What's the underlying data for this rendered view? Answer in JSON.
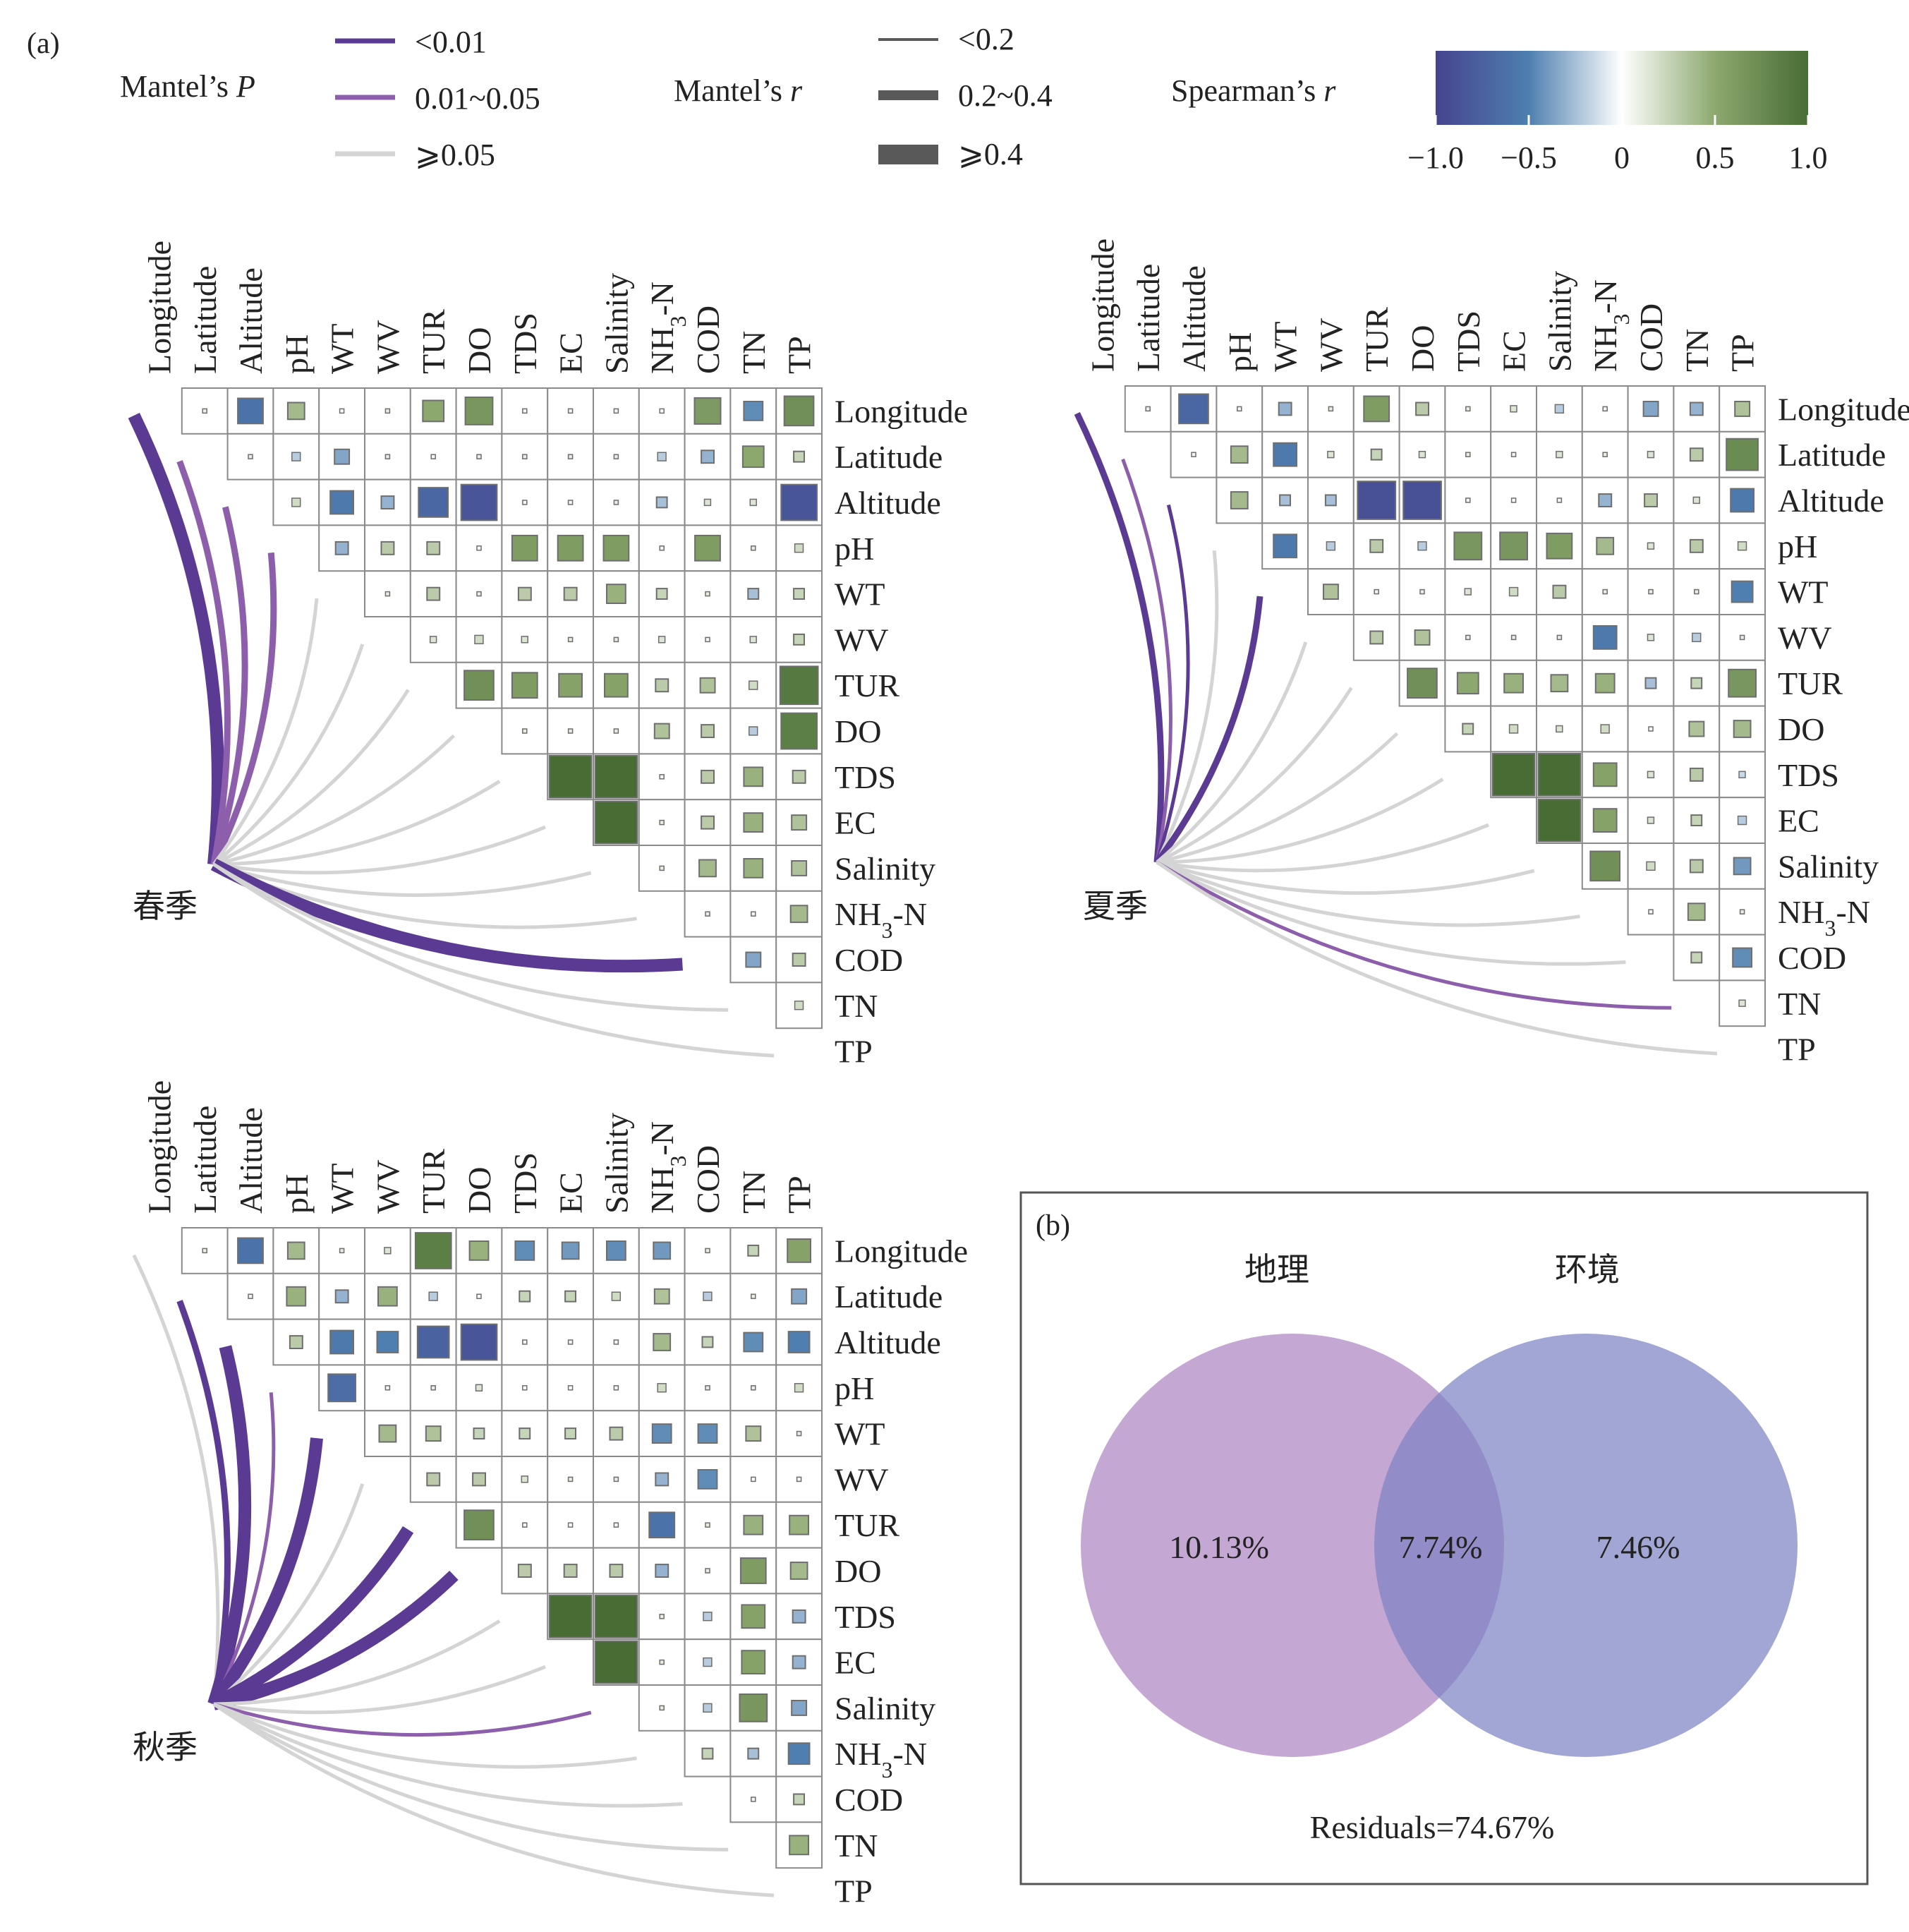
{
  "panel_a_label": "(a)",
  "panel_b_label": "(b)",
  "legend": {
    "mantel_p": {
      "title_text": "Mantel’s ",
      "title_symbol": "P",
      "items": [
        {
          "label": "<0.01",
          "color": "#5b3a93"
        },
        {
          "label": "0.01~0.05",
          "color": "#8d5eac"
        },
        {
          "label": "⩾0.05",
          "color": "#d4d4d4"
        }
      ]
    },
    "mantel_r": {
      "title_text": "Mantel’s ",
      "title_symbol": "r",
      "items": [
        {
          "label": "<0.2"
        },
        {
          "label": "0.2~0.4"
        },
        {
          "label": "⩾0.4"
        }
      ]
    },
    "spearman": {
      "title_text": "Spearman’s ",
      "title_symbol": "r",
      "ticks": [
        "−1.0",
        "−0.5",
        "0",
        "0.5",
        "1.0"
      ],
      "colors": [
        "#46448f",
        "#4e7fb0",
        "#ffffff",
        "#8da86f",
        "#476d35"
      ]
    }
  },
  "variables": [
    "Longitude",
    "Latitude",
    "Altitude",
    "pH",
    "WT",
    "WV",
    "TUR",
    "DO",
    "TDS",
    "EC",
    "Salinity",
    "NH3-N",
    "COD",
    "TN",
    "TP"
  ],
  "chart_data": [
    {
      "type": "mantel-correlation-heatmap",
      "season": "春季",
      "spearman_r_upper_triangle": [
        [
          0.08,
          -0.6,
          0.4,
          0.0,
          0.1,
          0.5,
          0.65,
          0.05,
          0.05,
          0.05,
          0.0,
          0.62,
          -0.45,
          0.7
        ],
        [
          0.1,
          -0.2,
          -0.35,
          0.1,
          0.05,
          0.1,
          0.1,
          0.1,
          0.1,
          -0.2,
          -0.3,
          0.5,
          0.25
        ],
        [
          0.2,
          -0.55,
          -0.3,
          -0.7,
          -0.85,
          0.05,
          0.05,
          0.1,
          -0.25,
          0.15,
          0.15,
          -0.85
        ],
        [
          -0.3,
          0.3,
          0.3,
          0.0,
          0.6,
          0.6,
          0.6,
          0.05,
          0.6,
          0.1,
          0.2
        ],
        [
          0.1,
          0.3,
          0.1,
          0.3,
          0.3,
          0.45,
          0.25,
          0.1,
          -0.25,
          0.25
        ],
        [
          0.15,
          0.2,
          0.15,
          0.1,
          0.1,
          0.15,
          0.05,
          0.15,
          0.25
        ],
        [
          0.7,
          0.6,
          0.55,
          0.55,
          0.3,
          0.35,
          0.2,
          0.9
        ],
        [
          0.1,
          0.1,
          0.1,
          0.35,
          0.3,
          -0.2,
          0.85
        ],
        [
          1.0,
          1.0,
          0.05,
          0.3,
          0.45,
          0.3
        ],
        [
          1.0,
          0.1,
          0.3,
          0.45,
          0.35
        ],
        [
          0.1,
          0.4,
          0.45,
          0.35
        ],
        [
          0.1,
          0.05,
          0.4
        ],
        [
          -0.35,
          0.3
        ],
        [
          0.2
        ]
      ],
      "mantel_tests": [
        {
          "target": "Longitude",
          "p": "<0.01",
          "r": "⩾0.4"
        },
        {
          "target": "Latitude",
          "p": "0.01~0.05",
          "r": "0.2~0.4"
        },
        {
          "target": "Altitude",
          "p": "0.01~0.05",
          "r": "0.2~0.4"
        },
        {
          "target": "pH",
          "p": "0.01~0.05",
          "r": "0.2~0.4"
        },
        {
          "target": "WT",
          "p": "⩾0.05",
          "r": "<0.2"
        },
        {
          "target": "WV",
          "p": "⩾0.05",
          "r": "<0.2"
        },
        {
          "target": "TUR",
          "p": "⩾0.05",
          "r": "<0.2"
        },
        {
          "target": "DO",
          "p": "⩾0.05",
          "r": "<0.2"
        },
        {
          "target": "TDS",
          "p": "⩾0.05",
          "r": "<0.2"
        },
        {
          "target": "EC",
          "p": "⩾0.05",
          "r": "<0.2"
        },
        {
          "target": "Salinity",
          "p": "⩾0.05",
          "r": "<0.2"
        },
        {
          "target": "NH3-N",
          "p": "⩾0.05",
          "r": "<0.2"
        },
        {
          "target": "COD",
          "p": "<0.01",
          "r": "⩾0.4"
        },
        {
          "target": "TN",
          "p": "⩾0.05",
          "r": "<0.2"
        },
        {
          "target": "TP",
          "p": "⩾0.05",
          "r": "<0.2"
        }
      ]
    },
    {
      "type": "mantel-correlation-heatmap",
      "season": "夏季",
      "spearman_r_upper_triangle": [
        [
          0.08,
          -0.7,
          0.05,
          -0.3,
          0.1,
          0.6,
          0.3,
          0.1,
          0.15,
          -0.2,
          0.05,
          -0.35,
          -0.3,
          0.35
        ],
        [
          0.05,
          0.4,
          -0.55,
          0.15,
          0.25,
          0.15,
          0.1,
          0.05,
          0.15,
          0.1,
          0.15,
          0.3,
          0.75
        ],
        [
          0.4,
          -0.25,
          -0.25,
          -0.9,
          -0.9,
          0.05,
          0.0,
          0.05,
          -0.3,
          0.3,
          0.15,
          -0.55
        ],
        [
          -0.55,
          -0.2,
          0.3,
          -0.2,
          0.65,
          0.65,
          0.6,
          0.4,
          0.15,
          0.3,
          0.2
        ],
        [
          0.35,
          0.05,
          0.1,
          0.15,
          0.2,
          0.3,
          0.1,
          0.1,
          0.1,
          -0.5
        ],
        [
          0.3,
          0.35,
          0.1,
          0.1,
          0.1,
          -0.55,
          0.15,
          -0.2,
          0.1
        ],
        [
          0.7,
          0.5,
          0.45,
          0.4,
          0.45,
          -0.25,
          0.25,
          0.65
        ],
        [
          0.25,
          0.2,
          0.15,
          0.2,
          0.0,
          0.35,
          0.4
        ],
        [
          1.0,
          1.0,
          0.55,
          0.15,
          0.3,
          -0.15
        ],
        [
          1.0,
          0.55,
          0.15,
          0.25,
          -0.2
        ],
        [
          0.7,
          0.2,
          0.3,
          -0.4
        ],
        [
          0.05,
          0.4,
          0.1
        ],
        [
          0.25,
          -0.45
        ],
        [
          0.15
        ]
      ],
      "mantel_tests": [
        {
          "target": "Longitude",
          "p": "<0.01",
          "r": "0.2~0.4"
        },
        {
          "target": "Latitude",
          "p": "0.01~0.05",
          "r": "<0.2"
        },
        {
          "target": "Altitude",
          "p": "<0.01",
          "r": "<0.2"
        },
        {
          "target": "pH",
          "p": "⩾0.05",
          "r": "<0.2"
        },
        {
          "target": "WT",
          "p": "<0.01",
          "r": "0.2~0.4"
        },
        {
          "target": "WV",
          "p": "⩾0.05",
          "r": "<0.2"
        },
        {
          "target": "TUR",
          "p": "⩾0.05",
          "r": "<0.2"
        },
        {
          "target": "DO",
          "p": "⩾0.05",
          "r": "<0.2"
        },
        {
          "target": "TDS",
          "p": "⩾0.05",
          "r": "<0.2"
        },
        {
          "target": "EC",
          "p": "⩾0.05",
          "r": "<0.2"
        },
        {
          "target": "Salinity",
          "p": "⩾0.05",
          "r": "<0.2"
        },
        {
          "target": "NH3-N",
          "p": "⩾0.05",
          "r": "<0.2"
        },
        {
          "target": "COD",
          "p": "⩾0.05",
          "r": "<0.2"
        },
        {
          "target": "TN",
          "p": "0.01~0.05",
          "r": "<0.2"
        },
        {
          "target": "TP",
          "p": "⩾0.05",
          "r": "<0.2"
        }
      ]
    },
    {
      "type": "mantel-correlation-heatmap",
      "season": "秋季",
      "spearman_r_upper_triangle": [
        [
          0.08,
          -0.6,
          0.4,
          0.1,
          0.15,
          0.85,
          0.45,
          -0.45,
          -0.4,
          -0.45,
          -0.4,
          0.1,
          0.25,
          0.55
        ],
        [
          0.05,
          0.45,
          -0.3,
          0.45,
          -0.2,
          0.0,
          0.25,
          0.25,
          0.2,
          0.35,
          -0.2,
          0.1,
          -0.35
        ],
        [
          0.3,
          -0.55,
          -0.5,
          -0.75,
          -0.85,
          0.05,
          0.05,
          0.05,
          0.4,
          0.25,
          -0.45,
          -0.5
        ],
        [
          -0.65,
          0.05,
          0.1,
          0.15,
          0.0,
          0.0,
          0.05,
          0.2,
          0.1,
          0.1,
          0.2
        ],
        [
          0.4,
          0.35,
          0.25,
          0.25,
          0.25,
          0.3,
          -0.45,
          -0.45,
          0.35,
          0.1
        ],
        [
          0.3,
          0.3,
          0.15,
          0.1,
          0.1,
          -0.3,
          -0.45,
          0.0,
          0.05
        ],
        [
          0.7,
          0.05,
          0.0,
          0.05,
          -0.6,
          0.1,
          0.45,
          0.45
        ],
        [
          0.3,
          0.3,
          0.3,
          -0.3,
          0.1,
          0.6,
          0.4
        ],
        [
          1.0,
          1.0,
          0.1,
          -0.2,
          0.55,
          -0.3
        ],
        [
          1.0,
          0.1,
          -0.2,
          0.55,
          -0.3
        ],
        [
          0.1,
          -0.2,
          0.65,
          -0.35
        ],
        [
          0.25,
          -0.25,
          -0.5
        ],
        [
          0.05,
          0.25
        ],
        [
          0.45
        ]
      ],
      "mantel_tests": [
        {
          "target": "Longitude",
          "p": "⩾0.05",
          "r": "<0.2"
        },
        {
          "target": "Latitude",
          "p": "<0.01",
          "r": "0.2~0.4"
        },
        {
          "target": "Altitude",
          "p": "<0.01",
          "r": "⩾0.4"
        },
        {
          "target": "pH",
          "p": "0.01~0.05",
          "r": "<0.2"
        },
        {
          "target": "WT",
          "p": "<0.01",
          "r": "⩾0.4"
        },
        {
          "target": "WV",
          "p": "⩾0.05",
          "r": "<0.2"
        },
        {
          "target": "TUR",
          "p": "<0.01",
          "r": "⩾0.4"
        },
        {
          "target": "DO",
          "p": "<0.01",
          "r": "⩾0.4"
        },
        {
          "target": "TDS",
          "p": "⩾0.05",
          "r": "<0.2"
        },
        {
          "target": "EC",
          "p": "⩾0.05",
          "r": "<0.2"
        },
        {
          "target": "Salinity",
          "p": "0.01~0.05",
          "r": "<0.2"
        },
        {
          "target": "NH3-N",
          "p": "⩾0.05",
          "r": "<0.2"
        },
        {
          "target": "COD",
          "p": "⩾0.05",
          "r": "<0.2"
        },
        {
          "target": "TN",
          "p": "⩾0.05",
          "r": "<0.2"
        },
        {
          "target": "TP",
          "p": "⩾0.05",
          "r": "<0.2"
        }
      ]
    },
    {
      "type": "venn",
      "sets": [
        {
          "name": "地理",
          "value": "10.13%",
          "color": "#b58ec7"
        },
        {
          "name": "环境",
          "value": "7.46%",
          "color": "#7e84c4"
        }
      ],
      "intersection": "7.74%",
      "residuals": "Residuals=74.67%"
    }
  ]
}
